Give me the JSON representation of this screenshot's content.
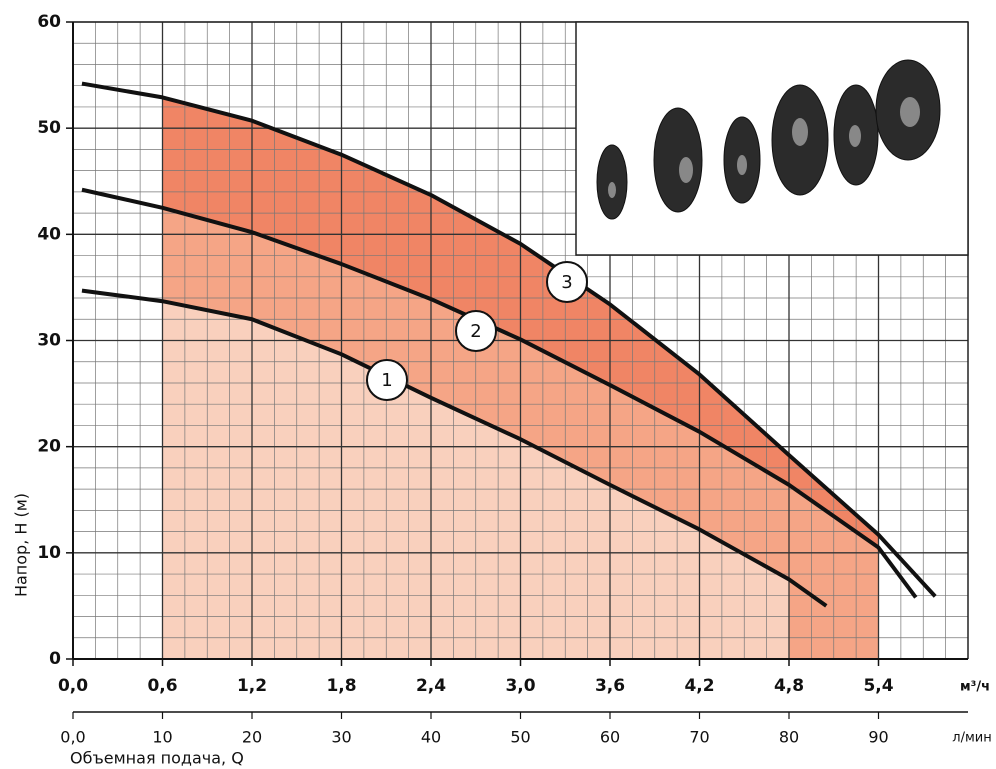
{
  "chart_data": {
    "type": "line",
    "xlim": [
      0,
      6.0
    ],
    "xticks": [
      {
        "value": 0,
        "label": "0,0"
      },
      {
        "value": 0.6,
        "label": "0,6"
      },
      {
        "value": 1.2,
        "label": "1,2"
      },
      {
        "value": 1.8,
        "label": "1,8"
      },
      {
        "value": 2.4,
        "label": "2,4"
      },
      {
        "value": 3.0,
        "label": "3,0"
      },
      {
        "value": 3.6,
        "label": "3,6"
      },
      {
        "value": 4.2,
        "label": "4,2"
      },
      {
        "value": 4.8,
        "label": "4,8"
      },
      {
        "value": 5.4,
        "label": "5,4"
      }
    ],
    "x_unit": "м³/ч",
    "x2lim": [
      0,
      100
    ],
    "x2ticks": [
      {
        "value": 0,
        "label": "0,0"
      },
      10,
      20,
      30,
      40,
      50,
      60,
      70,
      80,
      90
    ],
    "x2_unit": "л/мин",
    "x_label": "Объемная подача, Q",
    "ylim": [
      0,
      60
    ],
    "yticks": [
      0,
      10,
      20,
      30,
      40,
      50,
      60
    ],
    "y_label": "Напор, H (м)",
    "grid": true,
    "series": [
      {
        "name": "3",
        "color": "#111111",
        "fill": "#f08565",
        "x": [
          0.06,
          0.6,
          1.2,
          1.8,
          2.4,
          3.0,
          3.6,
          4.2,
          4.8,
          5.4,
          5.78
        ],
        "values": [
          54.2,
          52.9,
          50.7,
          47.5,
          43.7,
          39.1,
          33.4,
          26.8,
          19.2,
          11.7,
          5.9
        ]
      },
      {
        "name": "2",
        "color": "#111111",
        "fill": "#f5a586",
        "x": [
          0.06,
          0.6,
          1.2,
          1.8,
          2.4,
          3.0,
          3.6,
          4.2,
          4.8,
          5.4,
          5.65
        ],
        "values": [
          44.2,
          42.5,
          40.2,
          37.2,
          33.9,
          30.1,
          25.8,
          21.4,
          16.4,
          10.5,
          5.8
        ]
      },
      {
        "name": "1",
        "color": "#111111",
        "fill": "#f9d0bd",
        "x": [
          0.06,
          0.6,
          1.2,
          1.8,
          2.4,
          3.0,
          3.6,
          4.2,
          4.8,
          5.05
        ],
        "values": [
          34.7,
          33.7,
          32.0,
          28.7,
          24.6,
          20.7,
          16.4,
          12.2,
          7.5,
          5.0
        ]
      }
    ]
  }
}
